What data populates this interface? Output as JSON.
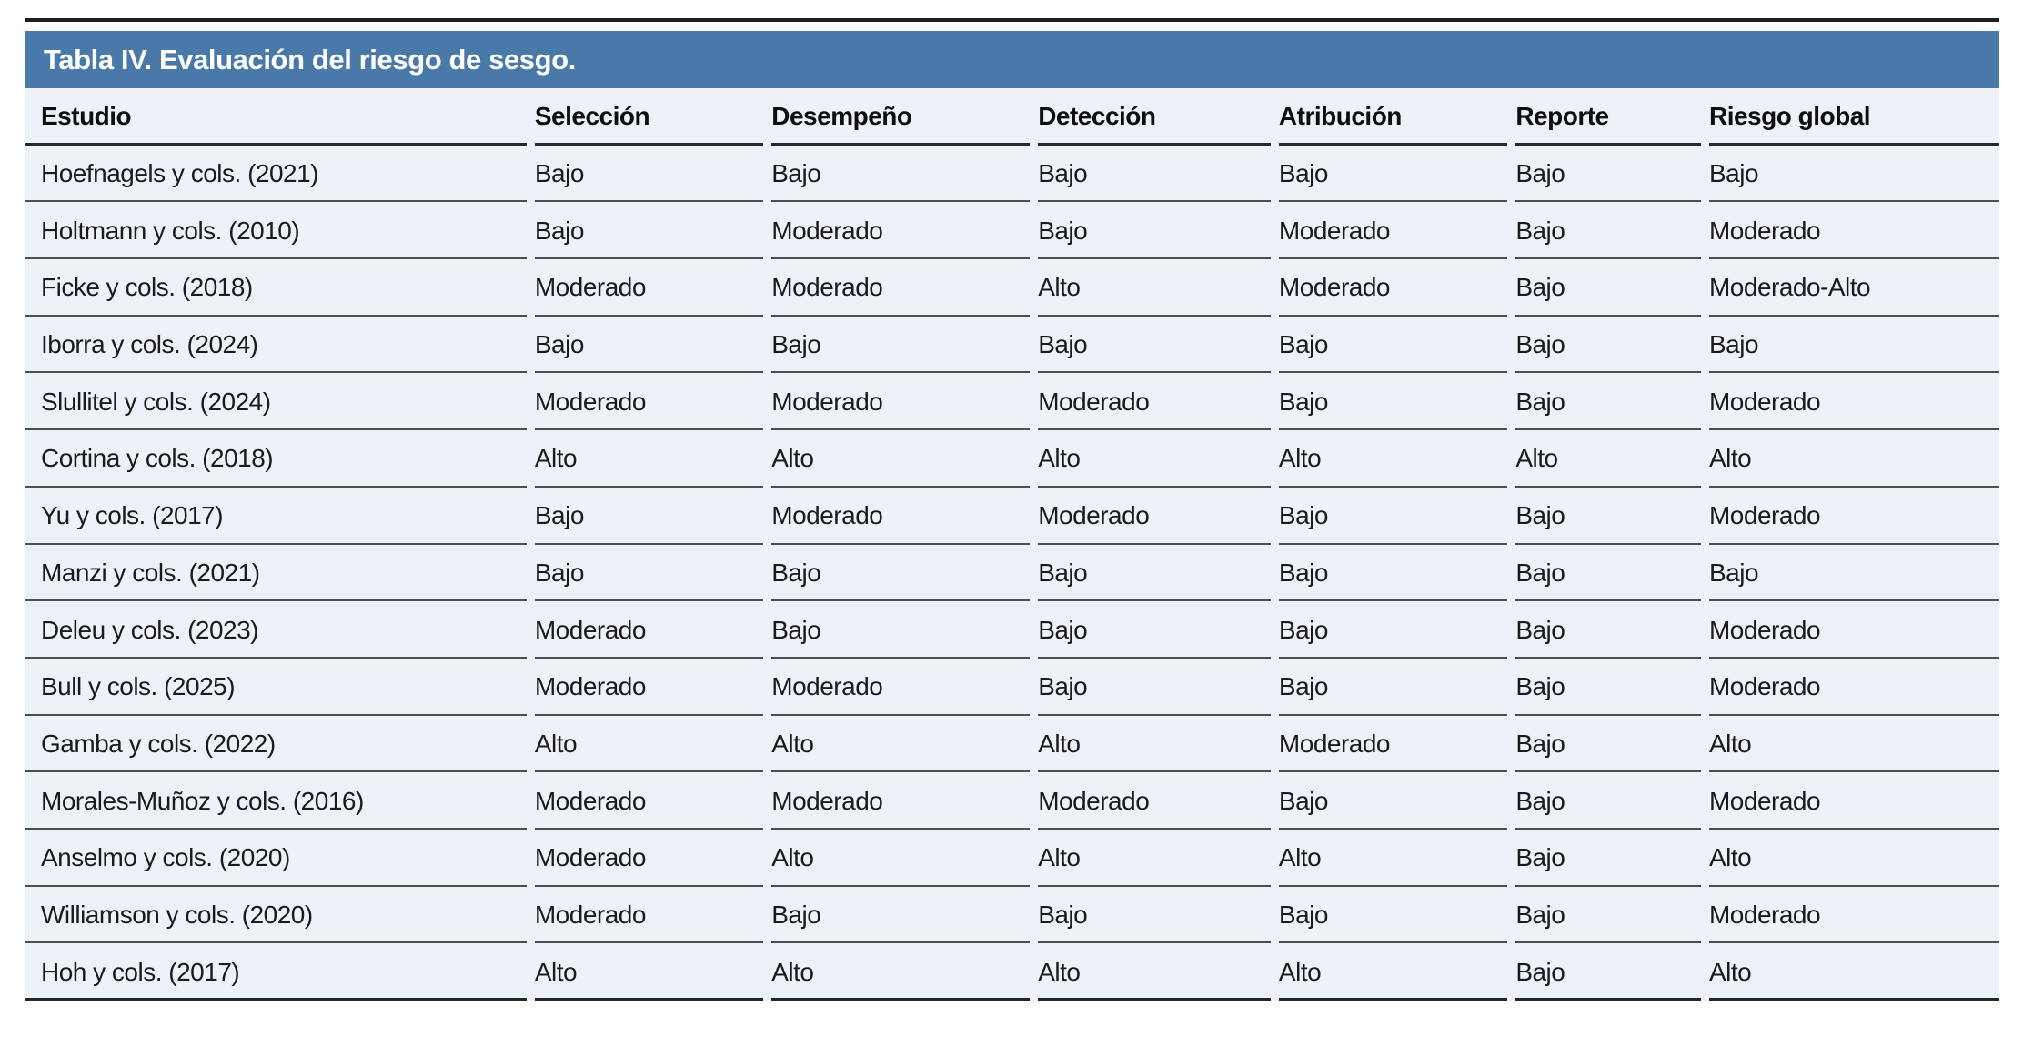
{
  "colors": {
    "title_bar_bg": "#4879a9",
    "title_text": "#ffffff",
    "row_bg": "#edf1f8",
    "rule_dark": "#2a2a2a",
    "rule_light": "#4e4e4e",
    "body_text": "#1b1b1b"
  },
  "chart_data": {
    "type": "table",
    "title": "Tabla IV. Evaluación del riesgo de sesgo.",
    "columns": [
      "Estudio",
      "Selección",
      "Desempeño",
      "Detección",
      "Atribución",
      "Reporte",
      "Riesgo global"
    ],
    "rows": [
      [
        "Hoefnagels y cols. (2021)",
        "Bajo",
        "Bajo",
        "Bajo",
        "Bajo",
        "Bajo",
        "Bajo"
      ],
      [
        "Holtmann y cols. (2010)",
        "Bajo",
        "Moderado",
        "Bajo",
        "Moderado",
        "Bajo",
        "Moderado"
      ],
      [
        "Ficke y cols. (2018)",
        "Moderado",
        "Moderado",
        "Alto",
        "Moderado",
        "Bajo",
        "Moderado-Alto"
      ],
      [
        "Iborra y cols. (2024)",
        "Bajo",
        "Bajo",
        "Bajo",
        "Bajo",
        "Bajo",
        "Bajo"
      ],
      [
        "Slullitel y cols. (2024)",
        "Moderado",
        "Moderado",
        "Moderado",
        "Bajo",
        "Bajo",
        "Moderado"
      ],
      [
        "Cortina y cols. (2018)",
        "Alto",
        "Alto",
        "Alto",
        "Alto",
        "Alto",
        "Alto"
      ],
      [
        "Yu y cols. (2017)",
        "Bajo",
        "Moderado",
        "Moderado",
        "Bajo",
        "Bajo",
        "Moderado"
      ],
      [
        "Manzi y cols. (2021)",
        "Bajo",
        "Bajo",
        "Bajo",
        "Bajo",
        "Bajo",
        "Bajo"
      ],
      [
        "Deleu y cols. (2023)",
        "Moderado",
        "Bajo",
        "Bajo",
        "Bajo",
        "Bajo",
        "Moderado"
      ],
      [
        "Bull y cols. (2025)",
        "Moderado",
        "Moderado",
        "Bajo",
        "Bajo",
        "Bajo",
        "Moderado"
      ],
      [
        "Gamba y cols. (2022)",
        "Alto",
        "Alto",
        "Alto",
        "Moderado",
        "Bajo",
        "Alto"
      ],
      [
        "Morales-Muñoz y cols. (2016)",
        "Moderado",
        "Moderado",
        "Moderado",
        "Bajo",
        "Bajo",
        "Moderado"
      ],
      [
        "Anselmo y cols. (2020)",
        "Moderado",
        "Alto",
        "Alto",
        "Alto",
        "Bajo",
        "Alto"
      ],
      [
        "Williamson y cols. (2020)",
        "Moderado",
        "Bajo",
        "Bajo",
        "Bajo",
        "Bajo",
        "Moderado"
      ],
      [
        "Hoh y cols. (2017)",
        "Alto",
        "Alto",
        "Alto",
        "Alto",
        "Bajo",
        "Alto"
      ]
    ]
  }
}
